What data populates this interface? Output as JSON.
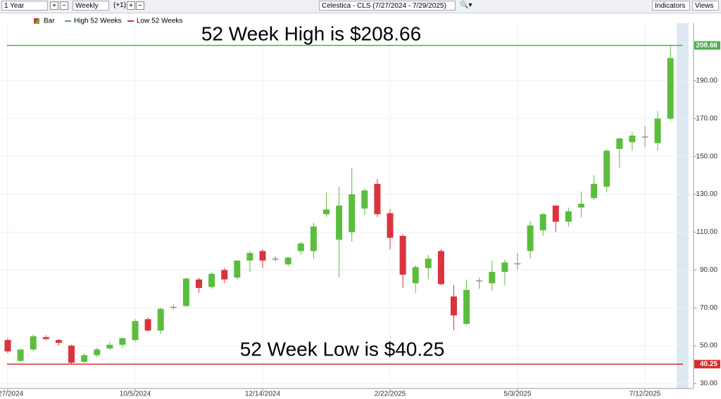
{
  "toolbar": {
    "period": "1 Year",
    "interval": "Weekly",
    "offset": "(+1)",
    "symbol": "Celestica - CLS (7/27/2024 - 7/29/2025)",
    "indicators": "Indicators",
    "views": "Views"
  },
  "chart_data": {
    "type": "candlestick",
    "categories": [
      "7/27/2024",
      null,
      null,
      null,
      null,
      null,
      null,
      null,
      null,
      null,
      "10/5/2024",
      null,
      null,
      null,
      null,
      null,
      null,
      null,
      null,
      null,
      "12/14/2024",
      null,
      null,
      null,
      null,
      null,
      null,
      null,
      null,
      null,
      "2/22/2025",
      null,
      null,
      null,
      null,
      null,
      null,
      null,
      null,
      null,
      "5/3/2025",
      null,
      null,
      null,
      null,
      null,
      null,
      null,
      null,
      null,
      "7/12/2025",
      null,
      null
    ],
    "series": [
      {
        "name": "Bar",
        "up_color": "#5bbd3d",
        "down_color": "#d9343d",
        "open": [
          53,
          42,
          48,
          54.5,
          53,
          50,
          41.5,
          45,
          48.5,
          50.5,
          53,
          64,
          58,
          70,
          71,
          85,
          81,
          90,
          86,
          95,
          100,
          96,
          93,
          100,
          100,
          119.5,
          106,
          110,
          122.5,
          135.5,
          120,
          108,
          83,
          91,
          100,
          76,
          61.5,
          84,
          83,
          89,
          93,
          100,
          111,
          124,
          115.5,
          123,
          128,
          134,
          154,
          157.5,
          160,
          157,
          170
        ],
        "high": [
          54,
          48,
          56,
          55.5,
          53.5,
          50.5,
          46,
          49,
          52,
          54,
          64,
          65,
          70,
          72,
          86,
          86,
          89,
          91,
          95,
          100,
          101,
          97.5,
          97,
          105,
          115,
          131,
          134,
          144,
          133,
          138,
          122,
          109,
          92.5,
          98,
          101,
          82,
          85,
          86,
          95,
          95.5,
          99,
          116,
          120,
          124.5,
          123,
          131.5,
          140,
          154,
          160,
          163,
          166,
          174,
          208.66
        ],
        "low": [
          46,
          41,
          47,
          53,
          50,
          40.25,
          41,
          44,
          48,
          49,
          52,
          57.5,
          56,
          69,
          70.5,
          78,
          80,
          83,
          85,
          89,
          91,
          94.5,
          92,
          98,
          96,
          118,
          86,
          105,
          119,
          118,
          101,
          80.5,
          78,
          85,
          82,
          58,
          61,
          80,
          79,
          82,
          90,
          96,
          108,
          110,
          113,
          118,
          127,
          131,
          144,
          153,
          155,
          153,
          169
        ],
        "close": [
          47,
          48,
          55,
          53.5,
          51.5,
          41,
          45,
          48,
          50.5,
          54,
          63,
          58,
          69.5,
          70.5,
          85.5,
          80.5,
          88,
          85,
          95,
          99,
          95,
          95.5,
          96.5,
          104,
          113,
          122,
          124,
          130,
          132,
          119.5,
          107,
          87.5,
          91.5,
          96,
          82.5,
          66,
          79.5,
          84.5,
          89,
          94,
          93.5,
          113.5,
          119.5,
          115.5,
          121,
          125,
          135.5,
          153,
          159.5,
          161,
          160.5,
          170,
          202
        ]
      }
    ],
    "hlines": [
      {
        "name": "High 52 Weeks",
        "value": 208.66,
        "color": "#4caf50"
      },
      {
        "name": "Low 52 Weeks",
        "value": 40.25,
        "color": "#d32f2f"
      }
    ],
    "annotations": [
      "52 Week High is $208.66",
      "52 Week Low is $40.25"
    ],
    "ylim": [
      27.4,
      220.4
    ],
    "yticks": [
      {
        "value": 30,
        "label": "30.00"
      },
      {
        "value": 50,
        "label": "50.00"
      },
      {
        "value": 70,
        "label": "70.00"
      },
      {
        "value": 90,
        "label": "90.00"
      },
      {
        "value": 110,
        "label": "110.00"
      },
      {
        "value": 130,
        "label": "130.00"
      },
      {
        "value": 150,
        "label": "150.00"
      },
      {
        "value": 170,
        "label": "170.00"
      },
      {
        "value": 190,
        "label": "190.00"
      }
    ],
    "grid": true
  }
}
